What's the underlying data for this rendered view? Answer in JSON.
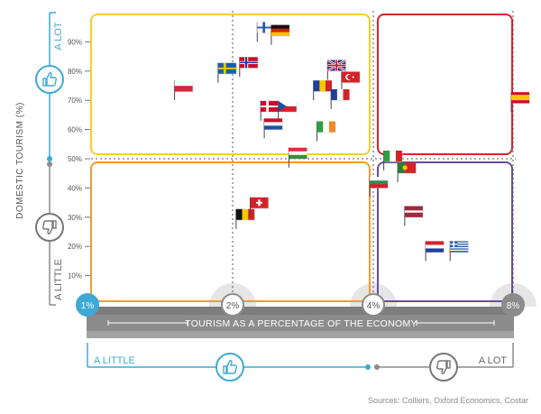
{
  "chart_data": {
    "type": "scatter",
    "title": "",
    "xlabel": "TOURISM AS A PERCENTAGE OF THE ECONOMY",
    "ylabel": "DOMESTIC TOURISM (%)",
    "x_scale": "piecewise",
    "x_ticks": [
      "1%",
      "2%",
      "4%",
      "8%"
    ],
    "y_ticks": [
      "10%",
      "20%",
      "30%",
      "40%",
      "50%",
      "60%",
      "70%",
      "80%",
      "90%"
    ],
    "ylim": [
      0,
      100
    ],
    "y_axis_ends": {
      "low": "A LITTLE",
      "high": "A LOT"
    },
    "x_axis_ends": {
      "low": "A LITTLE",
      "high": "A LOT"
    },
    "quadrant_colors": {
      "top_left": "#f2cf2f",
      "top_right": "#d9232e",
      "bottom_left": "#f39a34",
      "bottom_right": "#6a4c9c"
    },
    "accent_color": "#3fa9d6",
    "axis_color": "#8c8c8c",
    "icons": [
      "thumbs-up-icon",
      "thumbs-down-icon"
    ],
    "points": [
      {
        "country": "Poland",
        "x": 1.6,
        "y": 70
      },
      {
        "country": "Sweden",
        "x": 1.9,
        "y": 76
      },
      {
        "country": "Norway",
        "x": 2.1,
        "y": 78
      },
      {
        "country": "Finland",
        "x": 2.35,
        "y": 90
      },
      {
        "country": "Germany",
        "x": 2.55,
        "y": 89
      },
      {
        "country": "Denmark",
        "x": 2.4,
        "y": 63
      },
      {
        "country": "Czech Republic",
        "x": 2.65,
        "y": 63
      },
      {
        "country": "Netherlands",
        "x": 2.45,
        "y": 57
      },
      {
        "country": "Hungary",
        "x": 2.8,
        "y": 47
      },
      {
        "country": "Ireland",
        "x": 3.2,
        "y": 56
      },
      {
        "country": "Romania",
        "x": 3.15,
        "y": 70
      },
      {
        "country": "United Kingdom",
        "x": 3.35,
        "y": 77
      },
      {
        "country": "Turkey",
        "x": 3.55,
        "y": 73
      },
      {
        "country": "France",
        "x": 3.4,
        "y": 67
      },
      {
        "country": "Belgium",
        "x": 2.05,
        "y": 26
      },
      {
        "country": "Switzerland",
        "x": 2.25,
        "y": 30
      },
      {
        "country": "Bulgaria",
        "x": 3.95,
        "y": 37
      },
      {
        "country": "Italy",
        "x": 4.3,
        "y": 46
      },
      {
        "country": "Portugal",
        "x": 4.7,
        "y": 42
      },
      {
        "country": "Latvia",
        "x": 4.9,
        "y": 27
      },
      {
        "country": "Croatia",
        "x": 5.5,
        "y": 15
      },
      {
        "country": "Greece",
        "x": 6.2,
        "y": 15
      },
      {
        "country": "Spain",
        "x": 7.95,
        "y": 66
      }
    ]
  },
  "source_text": "Sources: Colliers, Oxford Economics, Costar"
}
